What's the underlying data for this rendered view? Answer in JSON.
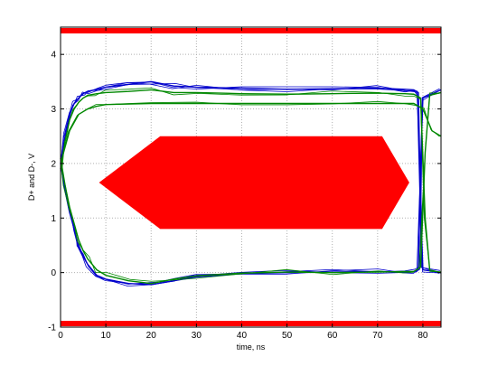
{
  "chart_data": {
    "type": "line",
    "title": "",
    "xlabel": "time, ns",
    "ylabel": "D+ and D-, V",
    "xlim": [
      0,
      84
    ],
    "ylim": [
      -1,
      4.5
    ],
    "grid": true,
    "x_ticks": [
      0,
      10,
      20,
      30,
      40,
      50,
      60,
      70,
      80
    ],
    "y_ticks": [
      -1,
      0,
      1,
      2,
      3,
      4
    ],
    "x_tick_labels": [
      "0",
      "10",
      "20",
      "30",
      "40",
      "50",
      "60",
      "70",
      "80"
    ],
    "y_tick_labels": [
      "-1",
      "0",
      "1",
      "2",
      "3",
      "4"
    ],
    "colors": {
      "mask": "#ff0000",
      "blue_traces": "#0000cc",
      "green_traces": "#008800",
      "grid": "#b0b0b0"
    },
    "mask": {
      "top_limit_v": 4.5,
      "bottom_limit_v": -1,
      "hexagon": [
        [
          8.5,
          1.65
        ],
        [
          22,
          2.5
        ],
        [
          71,
          2.5
        ],
        [
          77,
          1.65
        ],
        [
          71,
          0.8
        ],
        [
          22,
          0.8
        ]
      ]
    },
    "series": [
      {
        "color": "blue",
        "x": [
          0,
          1,
          2,
          3,
          4,
          5,
          6,
          8,
          10,
          15,
          20,
          25,
          30,
          40,
          50,
          60,
          70,
          76,
          78,
          79,
          79.5,
          80,
          84
        ],
        "y": [
          2.0,
          2.5,
          2.9,
          3.1,
          3.2,
          3.28,
          3.32,
          3.36,
          3.4,
          3.45,
          3.5,
          3.42,
          3.4,
          3.38,
          3.36,
          3.37,
          3.38,
          3.36,
          3.35,
          3.3,
          1.2,
          0.05,
          0.0
        ]
      },
      {
        "color": "blue",
        "x": [
          0,
          1,
          2,
          3,
          4,
          5,
          6,
          8,
          10,
          15,
          20,
          25,
          30,
          40,
          50,
          60,
          70,
          76,
          78,
          79,
          79.5,
          80,
          84
        ],
        "y": [
          2.0,
          1.5,
          1.1,
          0.8,
          0.5,
          0.3,
          0.15,
          -0.05,
          -0.12,
          -0.2,
          -0.22,
          -0.15,
          -0.08,
          -0.02,
          0.0,
          0.01,
          0.02,
          0.01,
          0.02,
          0.05,
          2.0,
          3.2,
          3.35
        ]
      },
      {
        "color": "green",
        "x": [
          0,
          1,
          2,
          3,
          4,
          5,
          6,
          8,
          10,
          15,
          20,
          25,
          30,
          40,
          50,
          60,
          70,
          76,
          78,
          79.5,
          80.5,
          81.5,
          84
        ],
        "y": [
          1.9,
          2.4,
          2.8,
          3.0,
          3.12,
          3.2,
          3.25,
          3.28,
          3.3,
          3.32,
          3.35,
          3.3,
          3.3,
          3.28,
          3.27,
          3.28,
          3.29,
          3.28,
          3.27,
          3.2,
          1.0,
          0.05,
          0.0
        ]
      },
      {
        "color": "green",
        "x": [
          0,
          1,
          2,
          3,
          4,
          5,
          6,
          8,
          10,
          15,
          20,
          25,
          30,
          40,
          50,
          60,
          70,
          76,
          78,
          79.5,
          80.5,
          81.5,
          84
        ],
        "y": [
          2.1,
          1.6,
          1.2,
          0.9,
          0.6,
          0.4,
          0.25,
          0.05,
          -0.05,
          -0.15,
          -0.2,
          -0.12,
          -0.06,
          -0.01,
          0.01,
          0.0,
          0.01,
          0.02,
          0.02,
          0.1,
          2.2,
          3.25,
          3.3
        ]
      },
      {
        "color": "green",
        "x": [
          0,
          2,
          4,
          6,
          8,
          10,
          20,
          30,
          40,
          50,
          60,
          70,
          76,
          78,
          80,
          82,
          84
        ],
        "y": [
          2.0,
          2.6,
          2.9,
          3.0,
          3.05,
          3.08,
          3.1,
          3.1,
          3.1,
          3.1,
          3.1,
          3.1,
          3.1,
          3.1,
          3.0,
          2.6,
          2.5
        ]
      }
    ]
  }
}
